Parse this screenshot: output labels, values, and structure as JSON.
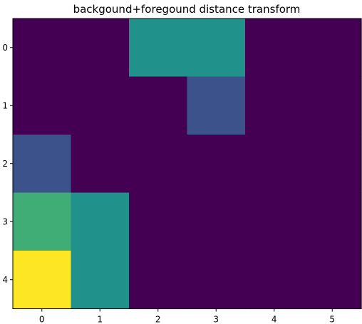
{
  "chart_data": {
    "type": "heatmap",
    "title": "backgound+foregound distance transform",
    "xlabel": "",
    "ylabel": "",
    "x_ticks": [
      "0",
      "1",
      "2",
      "3",
      "4",
      "5"
    ],
    "y_ticks": [
      "0",
      "1",
      "2",
      "3",
      "4"
    ],
    "colormap": "viridis",
    "vmin": 0,
    "vmax": 4,
    "values": [
      [
        0,
        0,
        2,
        2,
        0,
        0
      ],
      [
        0,
        0,
        0,
        1,
        0,
        0
      ],
      [
        1,
        0,
        0,
        0,
        0,
        0
      ],
      [
        2.5,
        2,
        0,
        0,
        0,
        0
      ],
      [
        4,
        2,
        0,
        0,
        0,
        0
      ]
    ],
    "grid": false,
    "legend": "none"
  }
}
